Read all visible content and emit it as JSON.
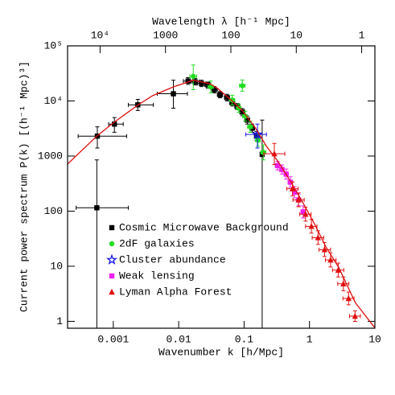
{
  "chart_data": {
    "type": "scatter",
    "xlabel": "Wavenumber k [h/Mpc]",
    "ylabel": "Current power spectrum P(k) [(h⁻¹ Mpc)³]",
    "x2label": "Wavelength λ [h⁻¹ Mpc]",
    "xscale": "log",
    "yscale": "log",
    "xlim": [
      0.0002,
      10
    ],
    "ylim": [
      0.75,
      100000
    ],
    "xticks": [
      0.001,
      0.01,
      0.1,
      1,
      10
    ],
    "yticks": [
      1,
      10,
      100,
      1000,
      {
        "value": 10000,
        "label": "10⁴"
      },
      {
        "value": 100000,
        "label": "10⁵"
      }
    ],
    "x2lim": [
      31416,
      0.628
    ],
    "x2ticks": [
      {
        "value": 10000,
        "label": "10⁴"
      },
      1000,
      100,
      10,
      1
    ],
    "legend": "lower left",
    "series": [
      {
        "name": "Cosmic Microwave Background",
        "color": "#000000",
        "marker": "square",
        "type": "errorbar",
        "x": [
          0.00056,
          0.00057,
          0.00104,
          0.00237,
          0.0083,
          0.0139,
          0.0178,
          0.0223,
          0.028,
          0.035,
          0.043,
          0.055,
          0.066,
          0.079,
          0.094,
          0.112,
          0.133,
          0.155,
          0.189
        ],
        "values": [
          115,
          2300,
          3800,
          8500,
          13500,
          23000,
          22300,
          20800,
          19500,
          16000,
          13000,
          11500,
          9300,
          7900,
          6300,
          4500,
          3200,
          2300,
          1070
        ],
        "x_low": [
          0.00027,
          0.00029,
          0.00085,
          0.0017,
          0.0047,
          0.0118,
          0.0155,
          0.0195,
          0.025,
          0.031,
          0.039,
          0.05,
          0.06,
          0.072,
          0.086,
          0.102,
          0.122,
          0.145,
          0.18
        ],
        "x_high": [
          0.0017,
          0.0016,
          0.00142,
          0.0041,
          0.0136,
          0.0163,
          0.0205,
          0.0255,
          0.031,
          0.039,
          0.047,
          0.06,
          0.072,
          0.086,
          0.102,
          0.122,
          0.145,
          0.166,
          0.2
        ],
        "y_low": [
          0.75,
          1400,
          2700,
          6700,
          7400,
          20000,
          19500,
          18200,
          17000,
          14000,
          11400,
          10000,
          8100,
          6900,
          5400,
          3800,
          2700,
          1900,
          0.75
        ],
        "y_high": [
          850,
          3400,
          5000,
          10700,
          23800,
          26500,
          25500,
          23800,
          22000,
          18300,
          14800,
          13200,
          10600,
          9000,
          7300,
          5300,
          3800,
          2800,
          4500
        ]
      },
      {
        "name": "2dF galaxies",
        "color": "#22dd22",
        "marker": "circle",
        "type": "errorbar",
        "x": [
          0.0167,
          0.031,
          0.094,
          0.066,
          0.083,
          0.104,
          0.124,
          0.163,
          0.197
        ],
        "values": [
          28000,
          18000,
          18900,
          10400,
          7400,
          5300,
          3400,
          1940,
          1170
        ],
        "x_low": [
          0.0148,
          0.028,
          0.085,
          0.06,
          0.076,
          0.095,
          0.113,
          0.15,
          0.18
        ],
        "x_high": [
          0.0188,
          0.034,
          0.104,
          0.072,
          0.09,
          0.113,
          0.135,
          0.177,
          0.215
        ],
        "y_low": [
          16000,
          14000,
          15000,
          8500,
          6200,
          4300,
          2700,
          1500,
          850
        ],
        "y_high": [
          45000,
          23000,
          24000,
          12700,
          8800,
          6500,
          4300,
          2500,
          1600
        ]
      },
      {
        "name": "Cluster abundance",
        "color": "#1a1aee",
        "marker": "star",
        "type": "errorbar",
        "x": [
          0.16
        ],
        "values": [
          2470
        ],
        "x_low": [
          0.106
        ],
        "x_high": [
          0.22
        ],
        "y_low": [
          1400
        ],
        "y_high": [
          3800
        ]
      },
      {
        "name": "Weak lensing",
        "color": "#ee22ee",
        "marker": "square",
        "type": "errorbar",
        "x": [
          0.325,
          0.38,
          0.44,
          0.51,
          0.59,
          0.68,
          0.8
        ],
        "values": [
          670,
          570,
          470,
          335,
          220,
          160,
          97
        ],
        "x_low": [
          0.3,
          0.35,
          0.41,
          0.47,
          0.55,
          0.63,
          0.74
        ],
        "x_high": [
          0.35,
          0.41,
          0.47,
          0.55,
          0.64,
          0.74,
          0.87
        ],
        "y_low": [
          560,
          470,
          380,
          270,
          175,
          125,
          75
        ],
        "y_high": [
          800,
          690,
          580,
          420,
          280,
          205,
          125
        ]
      },
      {
        "name": "Lyman Alpha Forest",
        "color": "#e01010",
        "marker": "triangle",
        "type": "errorbar",
        "x": [
          0.29,
          0.55,
          0.68,
          0.87,
          1.07,
          1.35,
          1.7,
          2.1,
          2.75,
          3.3,
          3.96,
          4.97
        ],
        "values": [
          1100,
          255,
          160,
          88,
          53,
          33,
          20,
          13,
          8.5,
          4.8,
          2.6,
          1.24
        ],
        "x_low": [
          0.2,
          0.45,
          0.56,
          0.71,
          0.87,
          1.1,
          1.4,
          1.75,
          2.25,
          2.7,
          3.25,
          4.1
        ],
        "x_high": [
          0.42,
          0.67,
          0.83,
          1.06,
          1.3,
          1.65,
          2.1,
          2.55,
          3.35,
          4.0,
          4.8,
          6.0
        ],
        "y_low": [
          700,
          190,
          120,
          66,
          40,
          25,
          15,
          9.7,
          6.4,
          3.6,
          2.0,
          1.0
        ],
        "y_high": [
          1700,
          340,
          215,
          118,
          71,
          44,
          27,
          17.5,
          11.4,
          6.4,
          3.4,
          1.55
        ]
      },
      {
        "color": "#e01010",
        "type": "line",
        "x": [
          0.0002,
          0.00056,
          0.001,
          0.0024,
          0.004,
          0.0083,
          0.0167,
          0.03,
          0.039,
          0.06,
          0.094,
          0.15,
          0.22,
          0.33,
          0.51,
          0.8,
          1.2,
          1.8,
          2.8,
          5,
          10
        ],
        "values": [
          716,
          2300,
          4000,
          8500,
          12500,
          18000,
          23800,
          20500,
          17000,
          11000,
          6700,
          3200,
          1500,
          800,
          350,
          140,
          58,
          22,
          9.5,
          2.2,
          0.76
        ]
      }
    ]
  }
}
